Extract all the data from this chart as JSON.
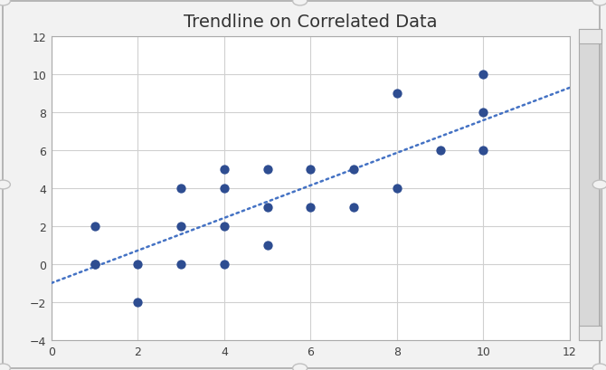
{
  "title": "Trendline on Correlated Data",
  "x_data": [
    1,
    1,
    1,
    2,
    2,
    3,
    3,
    3,
    4,
    4,
    4,
    4,
    5,
    5,
    5,
    6,
    6,
    7,
    7,
    8,
    8,
    9,
    10,
    10,
    10
  ],
  "y_data": [
    0,
    2,
    0,
    0,
    -2,
    4,
    0,
    2,
    5,
    4,
    0,
    2,
    5,
    3,
    1,
    5,
    3,
    3,
    5,
    9,
    4,
    6,
    10,
    8,
    6
  ],
  "dot_color": "#2E4D91",
  "trendline_color": "#4472C4",
  "xlim": [
    0,
    12
  ],
  "ylim": [
    -4,
    12
  ],
  "xticks": [
    0,
    2,
    4,
    6,
    8,
    10,
    12
  ],
  "yticks": [
    -4,
    -2,
    0,
    2,
    4,
    6,
    8,
    10,
    12
  ],
  "grid_color": "#D0D0D0",
  "plot_bg_color": "#FFFFFF",
  "outer_bg": "#F2F2F2",
  "frame_border_color": "#AAAAAA",
  "title_fontsize": 14,
  "marker_size": 55,
  "handle_color": "#C0C0C0",
  "scrollbar_color": "#D8D8D8"
}
